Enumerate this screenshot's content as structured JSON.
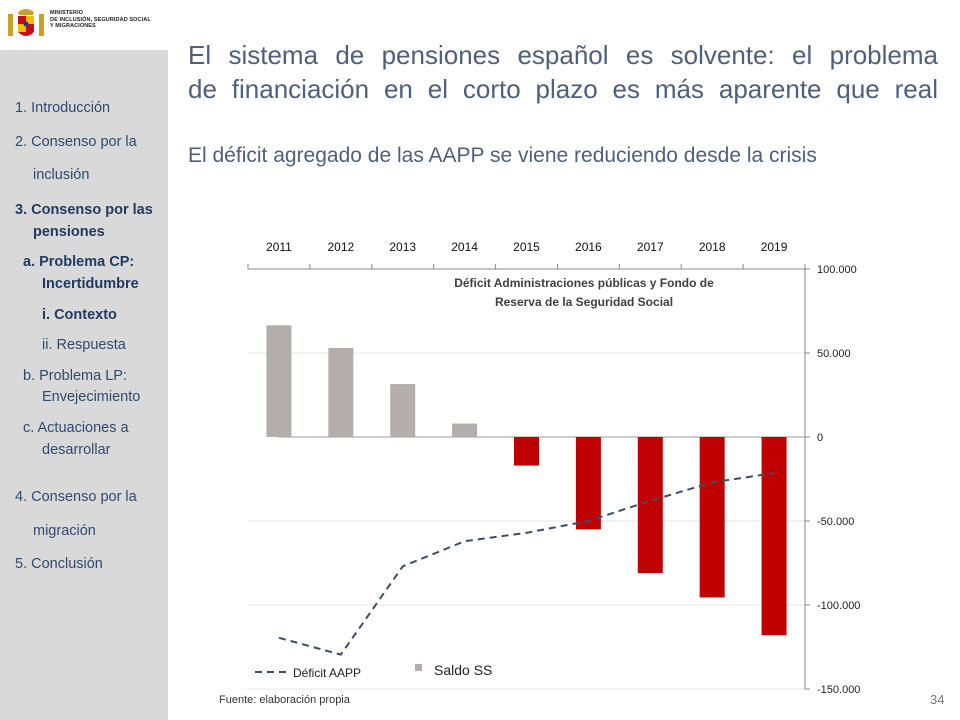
{
  "header": {
    "ministry_lines": [
      "MINISTERIO",
      "DE INCLUSIÓN, SEGURIDAD SOCIAL",
      "Y MIGRACIONES"
    ]
  },
  "sidebar": {
    "items": [
      {
        "label": "1. Introducción",
        "bold": false
      },
      {
        "label": "2. Consenso por la",
        "bold": false
      },
      {
        "label": "inclusión",
        "bold": false
      },
      {
        "label": "3. Consenso por las",
        "bold": true
      },
      {
        "label": "pensiones",
        "bold": true
      },
      {
        "label": "a. Problema CP:",
        "bold": true
      },
      {
        "label": "Incertidumbre",
        "bold": true
      },
      {
        "label": "i.  Contexto",
        "bold": true
      },
      {
        "label": "ii. Respuesta",
        "bold": false
      },
      {
        "label": "b. Problema LP:",
        "bold": false
      },
      {
        "label": "Envejecimiento",
        "bold": false
      },
      {
        "label": "c.  Actuaciones a",
        "bold": false
      },
      {
        "label": "desarrollar",
        "bold": false
      },
      {
        "label": "4. Consenso por la",
        "bold": false
      },
      {
        "label": "migración",
        "bold": false
      },
      {
        "label": "5. Conclusión",
        "bold": false
      }
    ]
  },
  "slide": {
    "title_line1": "El sistema de pensiones español es solvente: el problema",
    "title_line2": "de financiación en el corto plazo es más aparente que real",
    "subtitle": "El déficit agregado de las AAPP se viene reduciendo desde la crisis",
    "source": "Fuente:  elaboración propia",
    "page_number": "34"
  },
  "chart_data": {
    "type": "bar",
    "title_line1": "Déficit Administraciones públicas y Fondo de",
    "title_line2": "Reserva de la Seguridad Social",
    "categories": [
      "2011",
      "2012",
      "2013",
      "2014",
      "2015",
      "2016",
      "2017",
      "2018",
      "2019"
    ],
    "y_ticks": [
      "100.000",
      "50.000",
      "0",
      "-50.000",
      "-100.000",
      "-150.000"
    ],
    "y_tick_values": [
      100000,
      50000,
      0,
      -50000,
      -100000,
      -150000
    ],
    "ylim": [
      -150000,
      100000
    ],
    "y_axis_side": "right",
    "x_axis_position": "top",
    "grid": true,
    "series": [
      {
        "name": "Saldo SS",
        "kind": "bar",
        "values": [
          66500,
          53000,
          31500,
          8000,
          -17000,
          -55000,
          -81000,
          -95500,
          -118000
        ]
      },
      {
        "name": "Déficit AAPP",
        "kind": "dashed-line",
        "values": [
          -119500,
          -129500,
          -77000,
          -62000,
          -57000,
          -50000,
          -38000,
          -27000,
          -21500
        ]
      }
    ],
    "colors": {
      "positive_bar": "#b3adad",
      "negative_bar": "#c00000",
      "line": "#3d4d68"
    },
    "legend": {
      "placement": "bottom-left"
    }
  }
}
